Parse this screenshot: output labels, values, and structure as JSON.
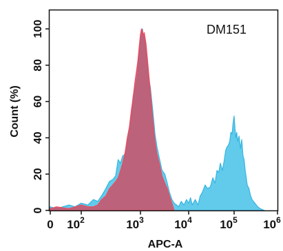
{
  "chart_data": {
    "type": "area",
    "title": "",
    "annotation": "DM151",
    "xlabel": "APC-A",
    "ylabel": "Count  (%)",
    "xscale": "biexponential",
    "xlim": [
      -20,
      1000000
    ],
    "ylim": [
      0,
      105
    ],
    "x_ticks": [
      {
        "value": 0,
        "base": "0",
        "exp": ""
      },
      {
        "value": 100,
        "base": "10",
        "exp": "2"
      },
      {
        "value": 1000,
        "base": "10",
        "exp": "3"
      },
      {
        "value": 10000,
        "base": "10",
        "exp": "4"
      },
      {
        "value": 100000,
        "base": "10",
        "exp": "5"
      },
      {
        "value": 1000000,
        "base": "10",
        "exp": "6"
      }
    ],
    "y_ticks": [
      0,
      20,
      40,
      60,
      80,
      100
    ],
    "grid": false,
    "series": [
      {
        "fill": "#5ac8ea",
        "stroke": "#35b5e0",
        "opacity": 0.95,
        "x": [
          -20,
          0,
          20,
          60,
          80,
          100,
          130,
          160,
          190,
          220,
          260,
          300,
          340,
          380,
          420,
          460,
          500,
          550,
          600,
          650,
          700,
          750,
          800,
          850,
          900,
          950,
          1000,
          1050,
          1100,
          1150,
          1200,
          1300,
          1400,
          1500,
          1600,
          1800,
          2000,
          2200,
          2500,
          2800,
          3200,
          3600,
          4000,
          4500,
          5000,
          5600,
          6200,
          7000,
          8000,
          9000,
          10000,
          11000,
          12000,
          14000,
          16000,
          18000,
          20000,
          23000,
          26000,
          30000,
          34000,
          38000,
          42000,
          46000,
          50000,
          55000,
          60000,
          65000,
          70000,
          75000,
          80000,
          85000,
          90000,
          95000,
          100000,
          105000,
          110000,
          115000,
          120000,
          130000,
          140000,
          150000,
          160000,
          170000,
          180000,
          190000,
          200000,
          220000,
          240000,
          260000,
          300000,
          350000,
          400000,
          500000
        ],
        "y": [
          0,
          2,
          1,
          3,
          2,
          4,
          3,
          6,
          5,
          8,
          12,
          16,
          17,
          19,
          28,
          26,
          30,
          31,
          40,
          45,
          52,
          63,
          66,
          70,
          75,
          88,
          96,
          99,
          100,
          96,
          95,
          86,
          82,
          72,
          68,
          55,
          42,
          35,
          28,
          22,
          20,
          15,
          10,
          6,
          4,
          3,
          2,
          5,
          3,
          6,
          4,
          7,
          3,
          6,
          3,
          8,
          10,
          14,
          12,
          13,
          18,
          15,
          22,
          21,
          26,
          22,
          27,
          33,
          35,
          36,
          38,
          43,
          42,
          48,
          52,
          45,
          40,
          43,
          38,
          41,
          34,
          39,
          30,
          28,
          22,
          18,
          14,
          12,
          8,
          6,
          4,
          2,
          1,
          0
        ]
      },
      {
        "fill": "#c9536b",
        "stroke": "#f04a5c",
        "opacity": 0.88,
        "x": [
          -20,
          0,
          20,
          60,
          100,
          130,
          160,
          190,
          220,
          260,
          300,
          340,
          380,
          420,
          460,
          500,
          550,
          600,
          650,
          700,
          750,
          800,
          850,
          900,
          950,
          1000,
          1050,
          1100,
          1150,
          1200,
          1300,
          1400,
          1500,
          1600,
          1800,
          2000,
          2200,
          2500,
          2800,
          3200,
          3600,
          4000,
          4500,
          5000
        ],
        "y": [
          0,
          1,
          2,
          1,
          3,
          2,
          2,
          3,
          6,
          8,
          12,
          14,
          16,
          18,
          22,
          26,
          32,
          40,
          46,
          55,
          62,
          70,
          76,
          82,
          90,
          97,
          100,
          99,
          96,
          98,
          92,
          83,
          74,
          66,
          50,
          38,
          31,
          25,
          19,
          15,
          12,
          8,
          4,
          0
        ]
      }
    ]
  }
}
